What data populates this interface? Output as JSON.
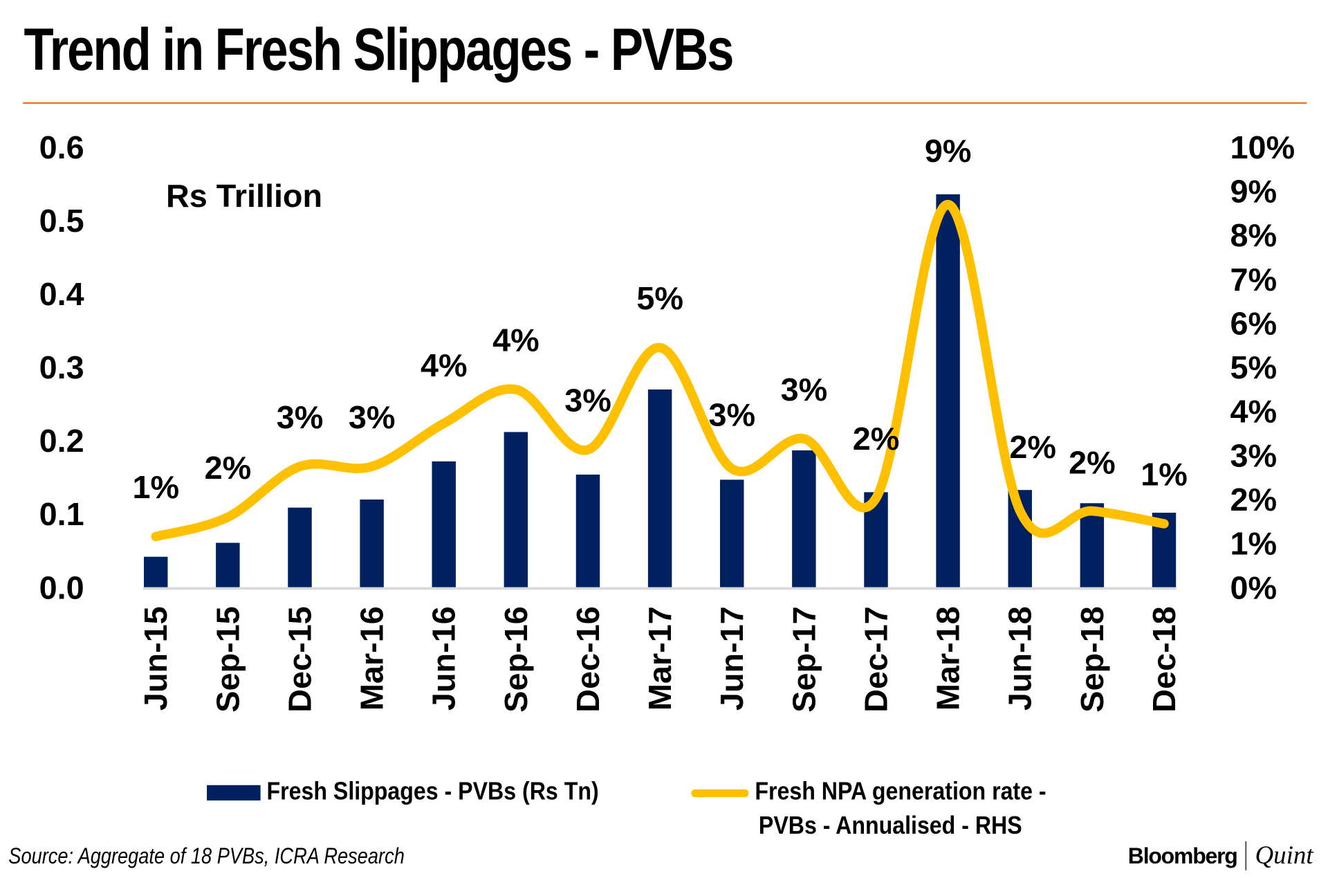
{
  "chart_data": {
    "type": "bar+line",
    "title": "Trend in Fresh Slippages - PVBs",
    "unit_label": "Rs Trillion",
    "categories": [
      "Jun-15",
      "Sep-15",
      "Dec-15",
      "Mar-16",
      "Jun-16",
      "Sep-16",
      "Dec-16",
      "Mar-17",
      "Jun-17",
      "Sep-17",
      "Dec-17",
      "Mar-18",
      "Jun-18",
      "Sep-18",
      "Dec-18"
    ],
    "series": [
      {
        "name": "Fresh Slippages - PVBs (Rs Tn)",
        "type": "bar",
        "axis": "left",
        "color": "#002060",
        "values": [
          0.042,
          0.061,
          0.109,
          0.12,
          0.172,
          0.212,
          0.154,
          0.27,
          0.147,
          0.187,
          0.13,
          0.536,
          0.133,
          0.115,
          0.102
        ]
      },
      {
        "name": "Fresh NPA generation rate - PVBs - Annualised - RHS",
        "legend_lines": [
          "Fresh NPA generation rate -",
          "PVBs - Annualised - RHS"
        ],
        "type": "line",
        "axis": "right",
        "color": "#ffc000",
        "smooth": true,
        "values": [
          1.16,
          1.6,
          2.75,
          2.75,
          3.73,
          4.5,
          3.13,
          5.45,
          2.7,
          3.38,
          2.03,
          8.7,
          1.74,
          1.74,
          1.45
        ],
        "data_labels": [
          "1%",
          "2%",
          "3%",
          "3%",
          "4%",
          "4%",
          "3%",
          "5%",
          "3%",
          "3%",
          "2%",
          "9%",
          "2%",
          "2%",
          "1%"
        ]
      }
    ],
    "left_axis": {
      "ylim": [
        0,
        0.6
      ],
      "ticks": [
        "0.0",
        "0.1",
        "0.2",
        "0.3",
        "0.4",
        "0.5",
        "0.6"
      ]
    },
    "right_axis": {
      "ylim": [
        0,
        10
      ],
      "ticks": [
        "0%",
        "1%",
        "2%",
        "3%",
        "4%",
        "5%",
        "6%",
        "7%",
        "8%",
        "9%",
        "10%"
      ]
    },
    "grid": false,
    "legend_placement": "bottom"
  },
  "footer": {
    "source": "Source: Aggregate of 18 PVBs, ICRA Research",
    "logo_left": "Bloomberg",
    "logo_right": "Quint"
  },
  "colors": {
    "accent_rule": "#e87722",
    "bar": "#002060",
    "line": "#ffc000"
  }
}
